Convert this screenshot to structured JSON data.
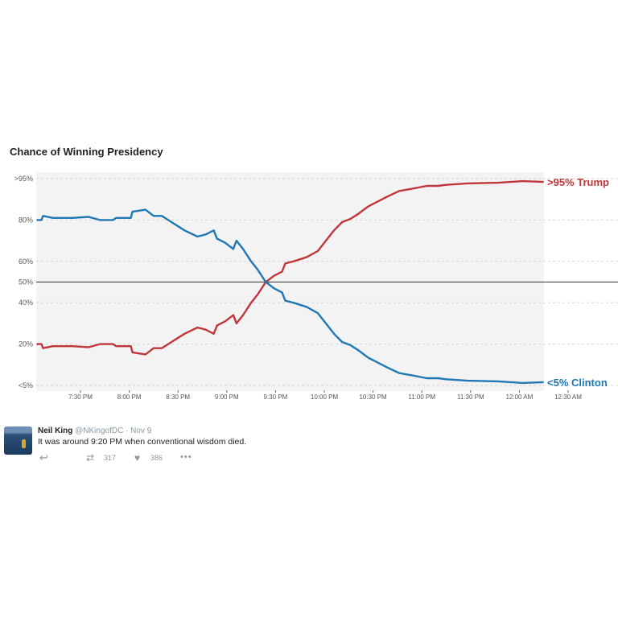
{
  "chart_data": {
    "type": "line",
    "title": "Chance of Winning Presidency",
    "ylim": [
      0,
      100
    ],
    "yticks": [
      {
        "value": 100,
        "label": ">95%"
      },
      {
        "value": 80,
        "label": "80%"
      },
      {
        "value": 60,
        "label": "60%"
      },
      {
        "value": 50,
        "label": "50%"
      },
      {
        "value": 40,
        "label": "40%"
      },
      {
        "value": 20,
        "label": "20%"
      },
      {
        "value": 0,
        "label": "<5%"
      }
    ],
    "xticks": [
      "7:30 PM",
      "8:00 PM",
      "8:30 PM",
      "9:00 PM",
      "9:30 PM",
      "10:00 PM",
      "10:30 PM",
      "11:00 PM",
      "11:30 PM",
      "12:00 AM",
      "12:30 AM"
    ],
    "xlim": [
      "7:03 PM",
      "12:42 AM"
    ],
    "shaded_until": "12:15 AM",
    "reference_line": 50,
    "grid": "dashed horizontal",
    "x": [
      "7:03 PM",
      "7:06 PM",
      "7:07 PM",
      "7:13 PM",
      "7:20 PM",
      "7:25 PM",
      "7:35 PM",
      "7:42 PM",
      "7:50 PM",
      "7:52 PM",
      "7:57 PM",
      "8:01 PM",
      "8:02 PM",
      "8:10 PM",
      "8:15 PM",
      "8:20 PM",
      "8:26 PM",
      "8:34 PM",
      "8:42 PM",
      "8:47 PM",
      "8:52 PM",
      "8:54 PM",
      "8:59 PM",
      "9:04 PM",
      "9:06 PM",
      "9:10 PM",
      "9:15 PM",
      "9:19 PM",
      "9:24 PM",
      "9:29 PM",
      "9:34 PM",
      "9:36 PM",
      "9:41 PM",
      "9:49 PM",
      "9:56 PM",
      "10:01 PM",
      "10:06 PM",
      "10:11 PM",
      "10:16 PM",
      "10:21 PM",
      "10:26 PM",
      "10:28 PM",
      "10:33 PM",
      "10:38 PM",
      "10:46 PM",
      "10:53 PM",
      "11:03 PM",
      "11:10 PM",
      "11:15 PM",
      "11:28 PM",
      "11:47 PM",
      "12:02 AM",
      "12:15 AM"
    ],
    "series": [
      {
        "name": "Trump",
        "end_label": ">95% Trump",
        "color": "#c0363a",
        "values": [
          20,
          20,
          18,
          19,
          19,
          19,
          18.5,
          20,
          20,
          19,
          19,
          19,
          16,
          15,
          18,
          18,
          21,
          25,
          28,
          27,
          25,
          29,
          31,
          34,
          30,
          34,
          40,
          44,
          50,
          53,
          55,
          59,
          60,
          62,
          65,
          70,
          75,
          79,
          80.5,
          83,
          86,
          87,
          89,
          91,
          94,
          95,
          96.5,
          96.5,
          97,
          97.7,
          98,
          98.8,
          98.4
        ]
      },
      {
        "name": "Clinton",
        "end_label": "<5% Clinton",
        "color": "#1f77b4",
        "values": [
          80,
          80,
          82,
          81,
          81,
          81,
          81.5,
          80,
          80,
          81,
          81,
          81,
          84,
          85,
          82,
          82,
          79,
          75,
          72,
          73,
          75,
          71,
          69,
          66,
          70,
          66,
          60,
          56,
          50,
          47,
          45,
          41,
          40,
          38,
          35,
          30,
          25,
          21,
          19.5,
          17,
          14,
          13,
          11,
          9,
          6,
          5,
          3.5,
          3.5,
          3,
          2.3,
          2,
          1.2,
          1.6
        ]
      }
    ]
  },
  "tweet": {
    "name": "Neil King",
    "handle": "@NKingofDC",
    "date": "· Nov 9",
    "text": "It was around 9:20 PM when conventional wisdom died.",
    "retweets": "317",
    "likes": "386",
    "icons": {
      "reply": "reply-icon",
      "retweet": "retweet-icon",
      "like": "heart-icon",
      "more": "more-icon"
    }
  }
}
